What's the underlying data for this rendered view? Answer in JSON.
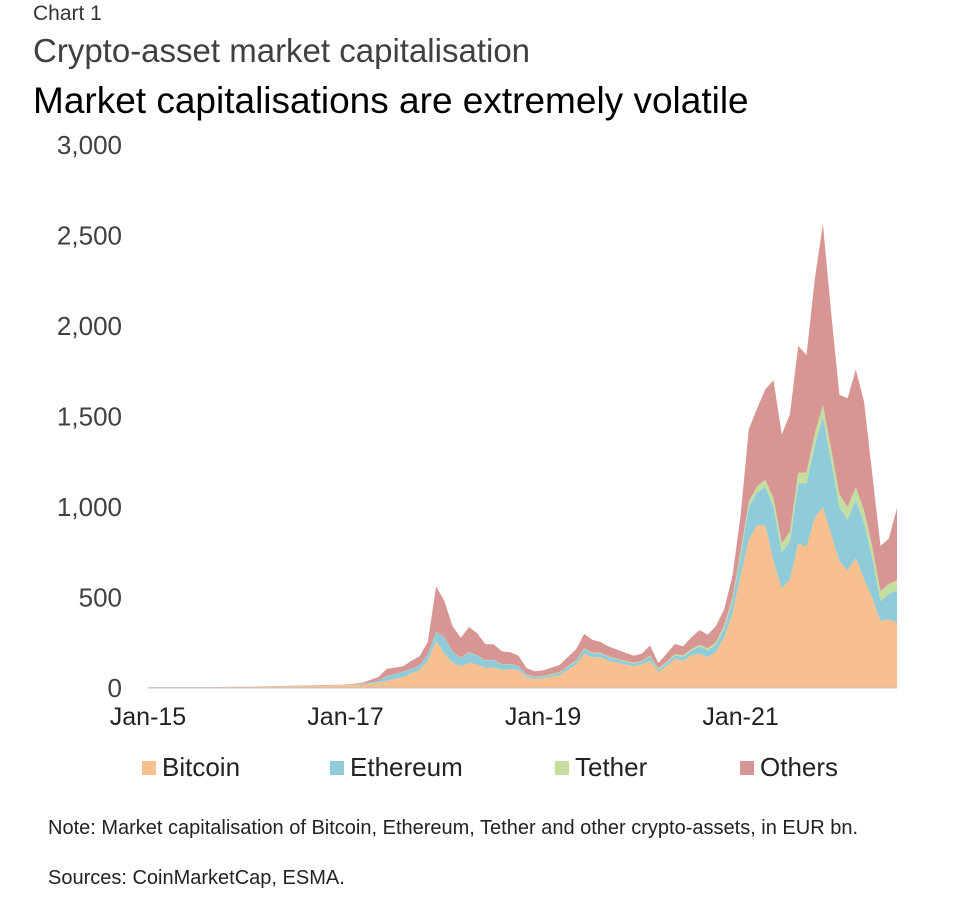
{
  "header": {
    "chart_label": "Chart 1",
    "subtitle": "Crypto-asset market capitalisation",
    "title": "Market capitalisations are extremely volatile"
  },
  "footer": {
    "note": "Note: Market capitalisation of Bitcoin, Ethereum, Tether and other crypto-assets, in EUR bn.",
    "sources": "Sources: CoinMarketCap, ESMA."
  },
  "chart_data": {
    "type": "area",
    "stacked": true,
    "title": "Market capitalisations are extremely volatile",
    "ylabel": "",
    "xlabel": "",
    "ylim": [
      0,
      3000
    ],
    "yticks": [
      "3,000",
      "2,500",
      "2,000",
      "1,500",
      "1,000",
      "500",
      "0"
    ],
    "ytick_values": [
      3000,
      2500,
      2000,
      1500,
      1000,
      500,
      0
    ],
    "xticks": [
      "Jan-15",
      "Jan-17",
      "Jan-19",
      "Jan-21"
    ],
    "xtick_values": [
      "2015-01",
      "2017-01",
      "2019-01",
      "2021-01"
    ],
    "xlim": [
      "2015-01",
      "2022-08"
    ],
    "grid": false,
    "legend_position": "bottom",
    "x": [
      "2015-01",
      "2015-07",
      "2016-01",
      "2016-07",
      "2017-01",
      "2017-03",
      "2017-05",
      "2017-06",
      "2017-08",
      "2017-09",
      "2017-10",
      "2017-11",
      "2017-12",
      "2018-01",
      "2018-02",
      "2018-03",
      "2018-04",
      "2018-05",
      "2018-06",
      "2018-07",
      "2018-08",
      "2018-09",
      "2018-10",
      "2018-11",
      "2018-12",
      "2019-01",
      "2019-03",
      "2019-05",
      "2019-06",
      "2019-07",
      "2019-08",
      "2019-09",
      "2019-10",
      "2019-11",
      "2019-12",
      "2020-01",
      "2020-02",
      "2020-03",
      "2020-04",
      "2020-05",
      "2020-06",
      "2020-07",
      "2020-08",
      "2020-09",
      "2020-10",
      "2020-11",
      "2020-12",
      "2021-01",
      "2021-02",
      "2021-03",
      "2021-04",
      "2021-05",
      "2021-06",
      "2021-07",
      "2021-08",
      "2021-09",
      "2021-10",
      "2021-11",
      "2021-12",
      "2022-01",
      "2022-02",
      "2022-03",
      "2022-04",
      "2022-05",
      "2022-06",
      "2022-07",
      "2022-08"
    ],
    "series": [
      {
        "name": "Bitcoin",
        "color": "#f8c08f",
        "values": [
          3,
          3,
          6,
          10,
          15,
          20,
          30,
          40,
          60,
          80,
          100,
          150,
          260,
          190,
          140,
          120,
          140,
          130,
          110,
          115,
          100,
          105,
          100,
          60,
          50,
          55,
          70,
          130,
          190,
          170,
          170,
          150,
          140,
          130,
          120,
          130,
          150,
          90,
          120,
          160,
          150,
          180,
          190,
          170,
          200,
          280,
          410,
          620,
          820,
          900,
          900,
          700,
          550,
          600,
          800,
          780,
          940,
          1000,
          850,
          700,
          650,
          720,
          600,
          500,
          370,
          380,
          360
        ]
      },
      {
        "name": "Ethereum",
        "color": "#8fcbd8",
        "values": [
          0,
          0,
          0.5,
          1,
          1,
          3,
          10,
          25,
          30,
          25,
          25,
          35,
          50,
          90,
          60,
          45,
          55,
          50,
          40,
          40,
          30,
          25,
          22,
          12,
          10,
          10,
          14,
          20,
          25,
          22,
          20,
          20,
          18,
          16,
          15,
          16,
          25,
          12,
          17,
          20,
          21,
          25,
          40,
          38,
          38,
          50,
          70,
          110,
          180,
          180,
          210,
          300,
          200,
          210,
          330,
          350,
          400,
          500,
          400,
          300,
          280,
          320,
          310,
          220,
          110,
          140,
          180
        ]
      },
      {
        "name": "Tether",
        "color": "#c4dea0",
        "values": [
          0,
          0,
          0,
          0,
          0,
          0,
          0.5,
          0.5,
          0.5,
          0.5,
          0.5,
          1,
          1,
          2,
          2,
          2,
          2,
          2,
          2,
          2,
          2,
          2,
          2,
          2,
          2,
          2,
          3,
          3,
          4,
          4,
          4,
          4,
          4,
          4,
          4,
          4,
          5,
          6,
          7,
          8,
          9,
          9,
          10,
          12,
          14,
          16,
          18,
          25,
          30,
          35,
          40,
          50,
          50,
          55,
          60,
          60,
          65,
          65,
          70,
          70,
          70,
          70,
          70,
          60,
          55,
          55,
          55
        ]
      },
      {
        "name": "Others",
        "color": "#d79694",
        "values": [
          1,
          1,
          1,
          2,
          3,
          5,
          20,
          40,
          30,
          45,
          50,
          70,
          250,
          200,
          140,
          110,
          140,
          120,
          90,
          85,
          70,
          65,
          55,
          35,
          30,
          30,
          40,
          60,
          80,
          70,
          60,
          55,
          50,
          45,
          40,
          40,
          55,
          30,
          45,
          55,
          50,
          65,
          80,
          75,
          90,
          90,
          120,
          200,
          400,
          430,
          500,
          650,
          600,
          650,
          700,
          650,
          850,
          1000,
          750,
          550,
          600,
          650,
          600,
          400,
          250,
          250,
          400
        ]
      }
    ]
  },
  "legend": [
    {
      "label": "Bitcoin",
      "color": "#f8c08f"
    },
    {
      "label": "Ethereum",
      "color": "#8fcbd8"
    },
    {
      "label": "Tether",
      "color": "#c4dea0"
    },
    {
      "label": "Others",
      "color": "#d79694"
    }
  ]
}
